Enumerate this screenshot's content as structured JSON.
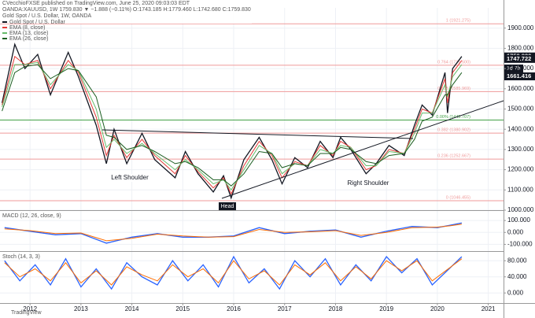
{
  "header": {
    "published": "CVecchioFXSE published on TradingView.com, June 25, 2020 09:03:03 EDT",
    "quote": "OANDA:XAUUSD, 1W 1759.830 ▼ −1.888 (−0.11%) O:1743.185 H:1779.460 L:1742.680 C:1759.830",
    "instrument": "Gold Spot / U.S. Dollar, 1W, OANDA",
    "macd_label": "MACD (12, 26, close, 9)",
    "stoch_label": "Stoch (14, 3, 3)",
    "countdown": "1d 7h",
    "brand": "TradingView",
    "left_shoulder": "Left Shoulder",
    "head": "Head",
    "right_shoulder": "Right Shoulder"
  },
  "chart_data": [
    {
      "type": "line",
      "xlim": [
        2011.41,
        2021.3
      ],
      "xticks": [
        2012,
        2013,
        2014,
        2015,
        2016,
        2017,
        2018,
        2019,
        2020,
        2021
      ],
      "ylim": [
        1000,
        2000
      ],
      "yticks": [
        {
          "value": 1000,
          "label": "1000.000"
        },
        {
          "value": 1100,
          "label": "1100.000"
        },
        {
          "value": 1200,
          "label": "1200.000"
        },
        {
          "value": 1300,
          "label": "1300.000"
        },
        {
          "value": 1400,
          "label": "1400.000"
        },
        {
          "value": 1500,
          "label": "1500.000"
        },
        {
          "value": 1600,
          "label": "1600.000"
        },
        {
          "value": 1700,
          "label": "1700.000"
        },
        {
          "value": 1800,
          "label": "1800.000"
        },
        {
          "value": 1900,
          "label": "1900.000"
        }
      ],
      "grid": true,
      "x": [
        2011.45,
        2011.7,
        2011.9,
        2012.15,
        2012.4,
        2012.75,
        2012.95,
        2013.3,
        2013.5,
        2013.65,
        2013.9,
        2014.2,
        2014.45,
        2014.85,
        2015.05,
        2015.3,
        2015.6,
        2015.8,
        2015.95,
        2016.2,
        2016.5,
        2016.75,
        2016.95,
        2017.2,
        2017.45,
        2017.7,
        2017.95,
        2018.1,
        2018.3,
        2018.6,
        2018.8,
        2019.05,
        2019.35,
        2019.55,
        2019.7,
        2019.9,
        2020.15,
        2020.2,
        2020.3,
        2020.48
      ],
      "series": [
        {
          "name": "Gold Spot / U.S. Dollar",
          "color": "#131722",
          "values": [
            1530,
            1820,
            1700,
            1770,
            1570,
            1780,
            1660,
            1420,
            1230,
            1400,
            1230,
            1380,
            1250,
            1160,
            1290,
            1180,
            1090,
            1170,
            1060,
            1250,
            1360,
            1250,
            1130,
            1260,
            1210,
            1340,
            1260,
            1360,
            1300,
            1180,
            1230,
            1320,
            1270,
            1420,
            1520,
            1470,
            1680,
            1480,
            1700,
            1759.83
          ]
        },
        {
          "name": "EMA (8, close)",
          "color": "#e53935",
          "values": [
            1520,
            1760,
            1720,
            1740,
            1600,
            1740,
            1680,
            1460,
            1270,
            1370,
            1260,
            1350,
            1270,
            1180,
            1270,
            1190,
            1110,
            1160,
            1080,
            1220,
            1340,
            1270,
            1160,
            1240,
            1220,
            1320,
            1270,
            1340,
            1310,
            1200,
            1220,
            1300,
            1280,
            1400,
            1500,
            1480,
            1650,
            1530,
            1680,
            1740
          ]
        },
        {
          "name": "EMA (13, close)",
          "color": "#66bb6a",
          "values": [
            1510,
            1720,
            1720,
            1730,
            1620,
            1720,
            1690,
            1500,
            1310,
            1350,
            1280,
            1330,
            1280,
            1200,
            1250,
            1200,
            1130,
            1150,
            1100,
            1200,
            1320,
            1280,
            1180,
            1230,
            1220,
            1300,
            1280,
            1320,
            1310,
            1220,
            1220,
            1290,
            1280,
            1380,
            1480,
            1480,
            1620,
            1560,
            1660,
            1720
          ]
        },
        {
          "name": "EMA (26, close)",
          "color": "#1b5e20",
          "values": [
            1490,
            1680,
            1710,
            1720,
            1650,
            1700,
            1690,
            1560,
            1370,
            1360,
            1300,
            1320,
            1290,
            1230,
            1240,
            1210,
            1150,
            1150,
            1120,
            1180,
            1290,
            1280,
            1210,
            1230,
            1220,
            1280,
            1280,
            1310,
            1300,
            1240,
            1230,
            1270,
            1280,
            1350,
            1440,
            1460,
            1570,
            1570,
            1620,
            1680
          ]
        }
      ],
      "levels": [
        {
          "value": 1921.275,
          "label": "1 (1921.275)",
          "color": "#ef9a9a"
        },
        {
          "value": 1716.5,
          "label": "0.764 (1716.500)",
          "color": "#ef9a9a"
        },
        {
          "value": 1585.969,
          "label": "0.618 (1585.969)",
          "color": "#ef9a9a"
        },
        {
          "value": 1445.707,
          "label": "0.00% (1445.707)",
          "color": "#43a047"
        },
        {
          "value": 1380.902,
          "label": "0.382 (1380.902)",
          "color": "#ef9a9a"
        },
        {
          "value": 1252.667,
          "label": "0.236 (1252.667)",
          "color": "#ef9a9a"
        },
        {
          "value": 1046.455,
          "label": "0 (1046.455)",
          "color": "#ef9a9a"
        }
      ],
      "price_tags": [
        {
          "value": 1759.83,
          "label": "1759.830",
          "color": "#131722"
        },
        {
          "value": 1747.722,
          "label": "1747.722",
          "color": "#131722"
        },
        {
          "value": 1661.416,
          "label": "1661.416",
          "color": "#131722"
        }
      ]
    },
    {
      "type": "line",
      "xlim": [
        2011.41,
        2021.3
      ],
      "ylim": [
        -150,
        180
      ],
      "yticks": [
        {
          "value": 100,
          "label": "100.000"
        },
        {
          "value": 0,
          "label": "0.000"
        },
        {
          "value": -100,
          "label": "-100.000"
        }
      ],
      "grid": true,
      "x": [
        2011.5,
        2012.0,
        2012.5,
        2013.0,
        2013.5,
        2014.0,
        2014.5,
        2015.0,
        2015.5,
        2016.0,
        2016.5,
        2017.0,
        2017.5,
        2018.0,
        2018.5,
        2019.0,
        2019.5,
        2020.0,
        2020.25,
        2020.48
      ],
      "series": [
        {
          "color": "#2962ff",
          "values": [
            40,
            10,
            -20,
            -10,
            -90,
            -40,
            -10,
            -40,
            -40,
            -30,
            40,
            -10,
            10,
            20,
            -40,
            10,
            50,
            40,
            60,
            80
          ]
        },
        {
          "color": "#ff6d00",
          "values": [
            30,
            15,
            -10,
            -5,
            -70,
            -50,
            -15,
            -30,
            -40,
            -35,
            25,
            0,
            5,
            15,
            -25,
            0,
            40,
            45,
            55,
            70
          ]
        }
      ]
    },
    {
      "type": "line",
      "xlim": [
        2011.41,
        2021.3
      ],
      "ylim": [
        -25,
        100
      ],
      "yticks": [
        {
          "value": 80,
          "label": "80.000"
        },
        {
          "value": 40,
          "label": "40.000"
        },
        {
          "value": 0,
          "label": "0.000"
        }
      ],
      "grid": true,
      "x": [
        2011.5,
        2011.8,
        2012.1,
        2012.4,
        2012.7,
        2013.0,
        2013.3,
        2013.6,
        2013.9,
        2014.2,
        2014.5,
        2014.8,
        2015.1,
        2015.4,
        2015.7,
        2016.0,
        2016.3,
        2016.6,
        2016.9,
        2017.2,
        2017.5,
        2017.8,
        2018.1,
        2018.4,
        2018.7,
        2019.0,
        2019.3,
        2019.6,
        2019.9,
        2020.48
      ],
      "series": [
        {
          "color": "#2962ff",
          "values": [
            80,
            30,
            70,
            20,
            85,
            15,
            60,
            10,
            75,
            40,
            20,
            80,
            30,
            70,
            15,
            90,
            25,
            60,
            10,
            80,
            40,
            85,
            20,
            70,
            30,
            90,
            50,
            85,
            20,
            90
          ]
        },
        {
          "color": "#ff6d00",
          "values": [
            75,
            40,
            60,
            30,
            75,
            25,
            55,
            20,
            65,
            45,
            30,
            70,
            40,
            60,
            25,
            80,
            35,
            55,
            20,
            70,
            45,
            75,
            30,
            65,
            35,
            80,
            55,
            80,
            30,
            85
          ]
        }
      ]
    }
  ]
}
